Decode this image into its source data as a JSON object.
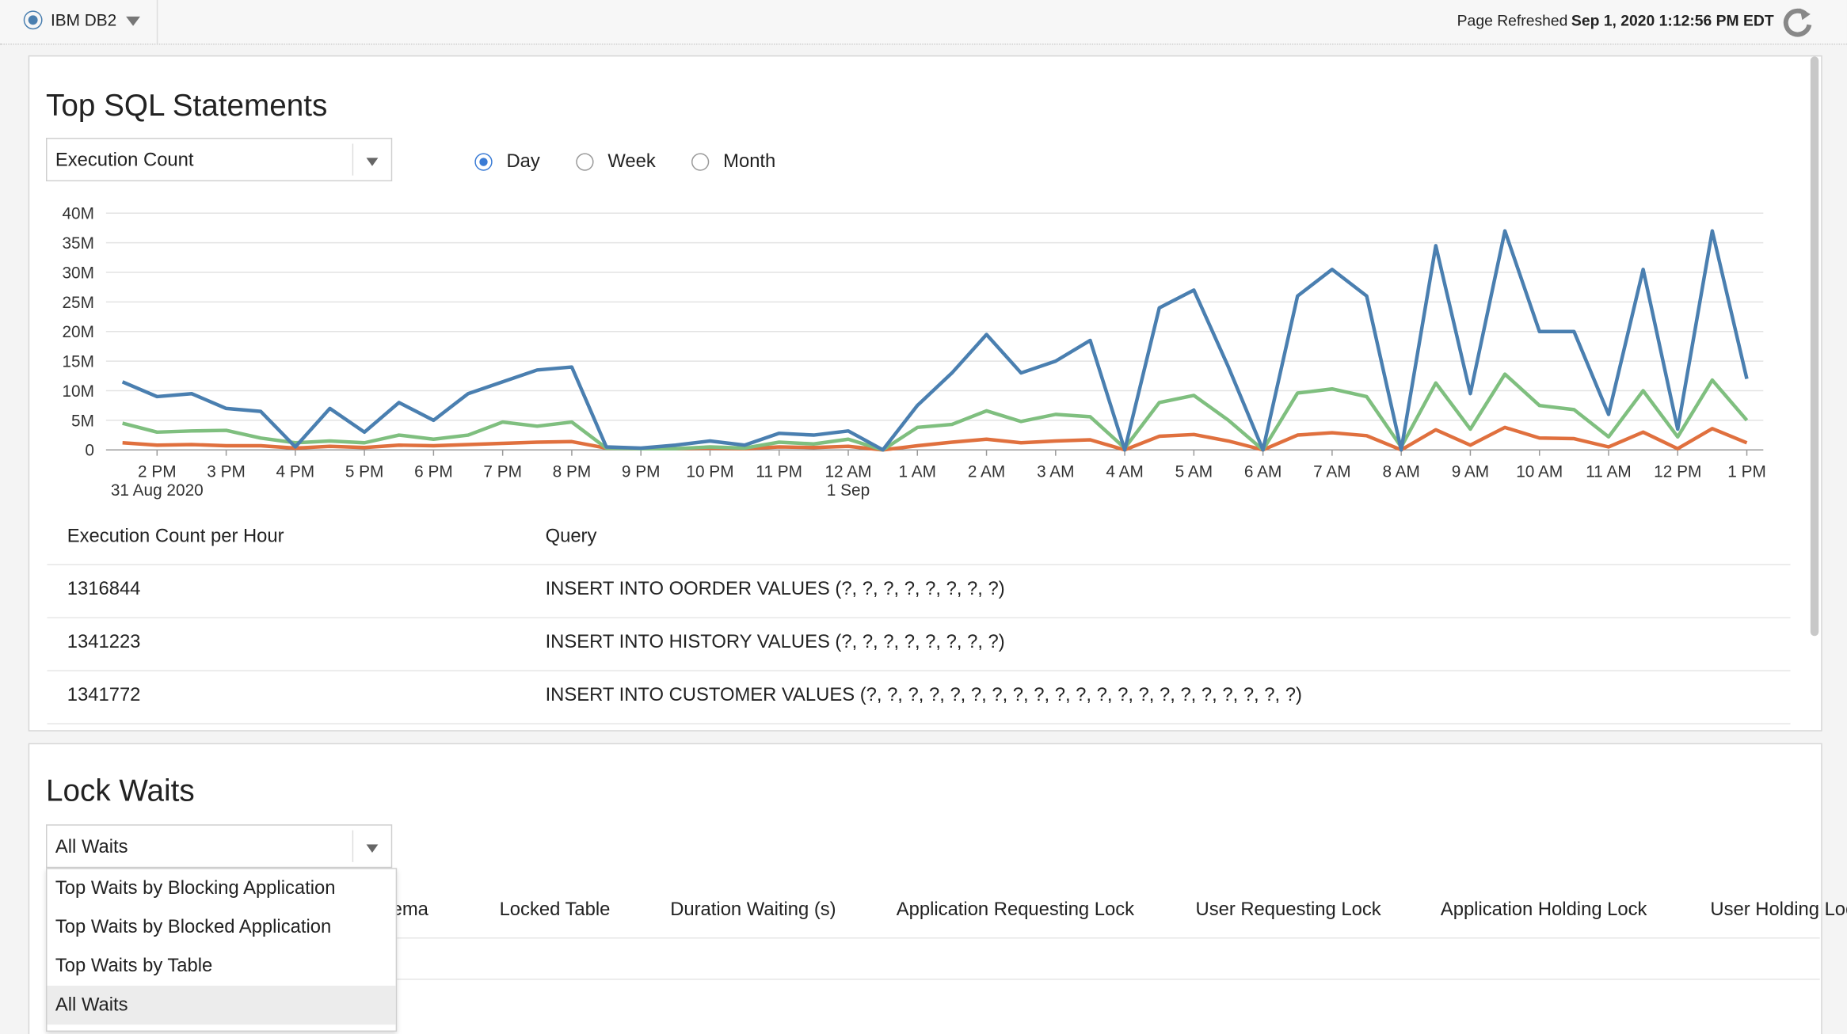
{
  "header": {
    "instance": "IBM DB2",
    "refreshed_label": "Page Refreshed",
    "refreshed_time": "Sep 1, 2020 1:12:56 PM EDT"
  },
  "top_sql": {
    "title": "Top SQL Statements",
    "metric_select": "Execution Count",
    "radios": [
      "Day",
      "Week",
      "Month"
    ],
    "selected_radio": 0
  },
  "chart_data": {
    "type": "line",
    "categories": [
      null,
      "2 PM",
      null,
      "3 PM",
      null,
      "4 PM",
      null,
      "5 PM",
      null,
      "6 PM",
      null,
      "7 PM",
      null,
      "8 PM",
      null,
      "9 PM",
      null,
      "10 PM",
      null,
      "11 PM",
      null,
      "12 AM",
      null,
      "1 AM",
      null,
      "2 AM",
      null,
      "3 AM",
      null,
      "4 AM",
      null,
      "5 AM",
      null,
      "6 AM",
      null,
      "7 AM",
      null,
      "8 AM",
      null,
      "9 AM",
      null,
      "10 AM",
      null,
      "11 AM",
      null,
      "12 PM",
      null,
      "1 PM"
    ],
    "date_labels": [
      null,
      "31 Aug 2020",
      null,
      null,
      null,
      null,
      null,
      null,
      null,
      null,
      null,
      null,
      null,
      null,
      null,
      null,
      null,
      null,
      null,
      null,
      null,
      "1 Sep",
      null,
      null,
      null,
      null,
      null,
      null,
      null,
      null,
      null,
      null,
      null,
      null,
      null,
      null,
      null,
      null,
      null,
      null,
      null,
      null,
      null,
      null,
      null,
      null,
      null,
      null
    ],
    "series": [
      {
        "color": "#4a7fb0",
        "values": [
          11500000,
          9000000,
          9500000,
          7000000,
          6500000,
          500000,
          7000000,
          3000000,
          8000000,
          5000000,
          9500000,
          11500000,
          13500000,
          14000000,
          500000,
          300000,
          800000,
          1500000,
          800000,
          2800000,
          2500000,
          3200000,
          0,
          7500000,
          13000000,
          19500000,
          13000000,
          15000000,
          18500000,
          0,
          24000000,
          27000000,
          14000000,
          0,
          26000000,
          30500000,
          26000000,
          0,
          34500000,
          9500000,
          37000000,
          20000000,
          20000000,
          6000000,
          30500000,
          3500000,
          37000000,
          12000000
        ]
      },
      {
        "color": "#7fbf7f",
        "values": [
          4500000,
          3000000,
          3200000,
          3300000,
          2000000,
          1200000,
          1500000,
          1200000,
          2500000,
          1800000,
          2500000,
          4700000,
          4000000,
          4700000,
          300000,
          200000,
          200000,
          500000,
          300000,
          1300000,
          1000000,
          1800000,
          0,
          3800000,
          4300000,
          6600000,
          4800000,
          6000000,
          5600000,
          300000,
          8000000,
          9200000,
          5000000,
          0,
          9600000,
          10300000,
          9000000,
          500000,
          11300000,
          3500000,
          12800000,
          7500000,
          6800000,
          2200000,
          10000000,
          2200000,
          11800000,
          5000000
        ]
      },
      {
        "color": "#e0703e",
        "values": [
          1200000,
          800000,
          900000,
          700000,
          700000,
          300000,
          600000,
          400000,
          800000,
          700000,
          900000,
          1100000,
          1300000,
          1400000,
          300000,
          200000,
          200000,
          300000,
          200000,
          500000,
          400000,
          600000,
          0,
          700000,
          1300000,
          1800000,
          1200000,
          1500000,
          1700000,
          0,
          2300000,
          2600000,
          1500000,
          0,
          2500000,
          2900000,
          2400000,
          0,
          3400000,
          800000,
          3800000,
          2000000,
          1900000,
          500000,
          3000000,
          200000,
          3600000,
          1200000
        ]
      }
    ],
    "ylim": [
      0,
      40000000
    ],
    "yticks": [
      0,
      {
        "value": 5000000,
        "label": "5M"
      },
      {
        "value": 10000000,
        "label": "10M"
      },
      {
        "value": 15000000,
        "label": "15M"
      },
      {
        "value": 20000000,
        "label": "20M"
      },
      {
        "value": 25000000,
        "label": "25M"
      },
      {
        "value": 30000000,
        "label": "30M"
      },
      {
        "value": 35000000,
        "label": "35M"
      },
      {
        "value": 40000000,
        "label": "40M"
      }
    ],
    "grid": true
  },
  "top_sql_table": {
    "headers": [
      "Execution Count per Hour",
      "Query"
    ],
    "rows": [
      [
        "1316844",
        "INSERT INTO OORDER VALUES (?, ?, ?, ?, ?, ?, ?, ?)"
      ],
      [
        "1341223",
        "INSERT INTO HISTORY VALUES (?, ?, ?, ?, ?, ?, ?, ?)"
      ],
      [
        "1341772",
        "INSERT INTO CUSTOMER VALUES (?, ?, ?, ?, ?, ?, ?, ?, ?, ?, ?, ?, ?, ?, ?, ?, ?, ?, ?, ?, ?)"
      ]
    ]
  },
  "lock_waits": {
    "title": "Lock Waits",
    "select": "All Waits",
    "options": [
      "Top Waits by Blocking Application",
      "Top Waits by Blocked Application",
      "Top Waits by Table",
      "All Waits"
    ],
    "headers": [
      "Schema",
      "Locked Table",
      "Duration Waiting (s)",
      "Application Requesting Lock",
      "User Requesting Lock",
      "Application Holding Lock",
      "User Holding Lock"
    ]
  }
}
